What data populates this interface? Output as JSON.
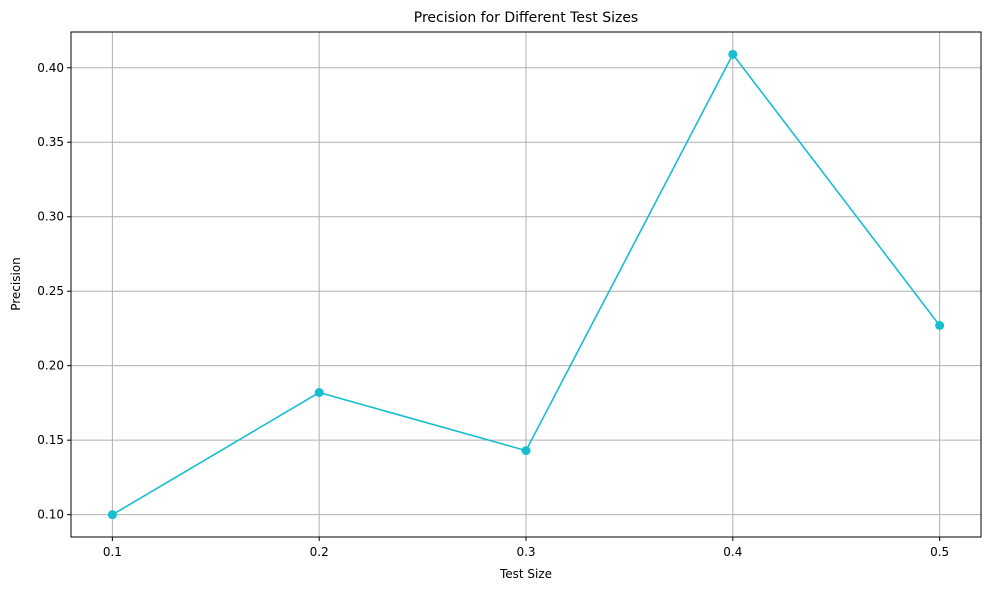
{
  "chart_data": {
    "type": "line",
    "title": "Precision for Different Test Sizes",
    "xlabel": "Test Size",
    "ylabel": "Precision",
    "x": [
      0.1,
      0.2,
      0.3,
      0.4,
      0.5
    ],
    "series": [
      {
        "values": [
          0.1,
          0.182,
          0.143,
          0.409,
          0.227
        ],
        "color": "#17becf",
        "marker": "circle"
      }
    ],
    "xlim": [
      0.08,
      0.52
    ],
    "ylim": [
      0.085,
      0.424
    ],
    "xticks": [
      0.1,
      0.2,
      0.3,
      0.4,
      0.5
    ],
    "xtick_labels": [
      "0.1",
      "0.2",
      "0.3",
      "0.4",
      "0.5"
    ],
    "yticks": [
      0.1,
      0.15,
      0.2,
      0.25,
      0.3,
      0.35,
      0.4
    ],
    "ytick_labels": [
      "0.10",
      "0.15",
      "0.20",
      "0.25",
      "0.30",
      "0.35",
      "0.40"
    ],
    "grid": true,
    "grid_color": "#b0b0b0",
    "line_color": "#17becf"
  }
}
